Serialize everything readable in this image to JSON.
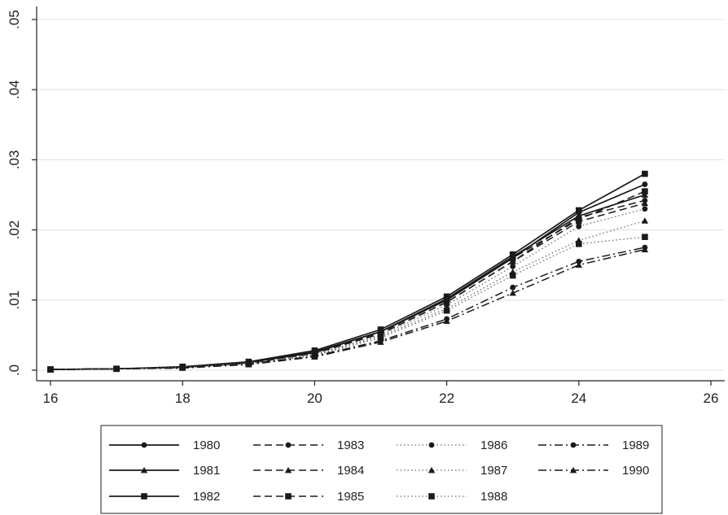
{
  "chart_data": {
    "type": "line",
    "title": "",
    "xlabel": "",
    "ylabel": "",
    "xlim": [
      16,
      26
    ],
    "ylim": [
      0,
      0.05
    ],
    "x_ticks": [
      "16",
      "18",
      "20",
      "22",
      "24",
      "26"
    ],
    "y_ticks": [
      ".0",
      ".01",
      ".02",
      ".03",
      ".04",
      ".05"
    ],
    "grid": "horizontal",
    "legend_position": "bottom",
    "x": [
      16,
      17,
      18,
      19,
      20,
      21,
      22,
      23,
      24,
      25
    ],
    "series": [
      {
        "name": "1980",
        "dash": "solid",
        "marker": "circle",
        "values": [
          0.0001,
          0.0002,
          0.0004,
          0.0011,
          0.0025,
          0.0055,
          0.01,
          0.016,
          0.0225,
          0.0265
        ]
      },
      {
        "name": "1981",
        "dash": "solid",
        "marker": "triangle",
        "values": [
          0.0001,
          0.0002,
          0.0004,
          0.0011,
          0.0026,
          0.0055,
          0.0102,
          0.0162,
          0.022,
          0.025
        ]
      },
      {
        "name": "1982",
        "dash": "solid",
        "marker": "square",
        "values": [
          0.0001,
          0.0002,
          0.0005,
          0.0012,
          0.0028,
          0.0058,
          0.0105,
          0.0165,
          0.0228,
          0.028
        ]
      },
      {
        "name": "1983",
        "dash": "longdash",
        "marker": "circle",
        "values": [
          0.0001,
          0.0002,
          0.0004,
          0.001,
          0.0024,
          0.0052,
          0.0097,
          0.0155,
          0.0218,
          0.0242
        ]
      },
      {
        "name": "1984",
        "dash": "longdash",
        "marker": "triangle",
        "values": [
          0.0001,
          0.0002,
          0.0004,
          0.001,
          0.0024,
          0.0052,
          0.0097,
          0.0155,
          0.0212,
          0.0238
        ]
      },
      {
        "name": "1985",
        "dash": "longdash",
        "marker": "square",
        "values": [
          0.0001,
          0.0002,
          0.0004,
          0.0011,
          0.0025,
          0.0054,
          0.01,
          0.016,
          0.0215,
          0.0255
        ]
      },
      {
        "name": "1986",
        "dash": "dot",
        "marker": "circle",
        "values": [
          0.0001,
          0.0002,
          0.0004,
          0.001,
          0.0023,
          0.005,
          0.0093,
          0.0148,
          0.0205,
          0.023
        ]
      },
      {
        "name": "1987",
        "dash": "dot",
        "marker": "triangle",
        "values": [
          0.0001,
          0.0002,
          0.0004,
          0.001,
          0.0022,
          0.0048,
          0.0088,
          0.014,
          0.0185,
          0.0213
        ]
      },
      {
        "name": "1988",
        "dash": "dot",
        "marker": "square",
        "values": [
          0.0001,
          0.0002,
          0.0004,
          0.0009,
          0.0021,
          0.0046,
          0.0085,
          0.0135,
          0.018,
          0.019
        ]
      },
      {
        "name": "1989",
        "dash": "dashdot",
        "marker": "circle",
        "values": [
          0.0001,
          0.0002,
          0.0003,
          0.0009,
          0.002,
          0.0042,
          0.0073,
          0.0118,
          0.0155,
          0.0175
        ]
      },
      {
        "name": "1990",
        "dash": "dashdot",
        "marker": "triangle",
        "values": [
          0.0001,
          0.0002,
          0.0003,
          0.0008,
          0.0019,
          0.004,
          0.007,
          0.011,
          0.015,
          0.0172
        ]
      }
    ]
  }
}
